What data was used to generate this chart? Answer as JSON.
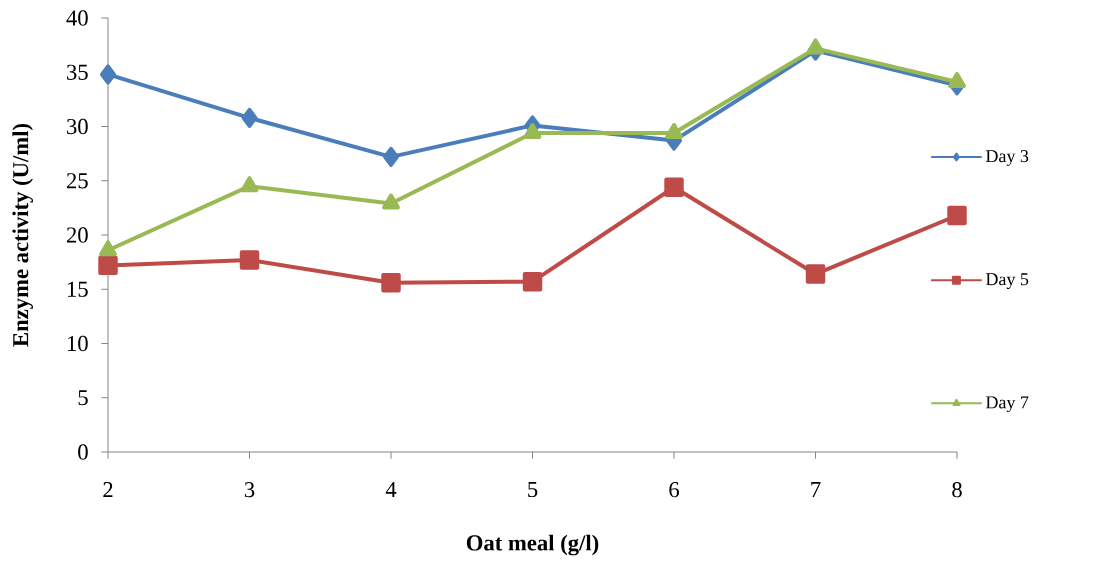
{
  "chart_data": {
    "type": "line",
    "xlabel": "Oat meal (g/l)",
    "ylabel": "Enzyme activity (U/ml)",
    "x": [
      2,
      3,
      4,
      5,
      6,
      7,
      8
    ],
    "series": [
      {
        "name": "Day 3",
        "color": "#4a7ebb",
        "marker": "diamond",
        "values": [
          34.8,
          30.8,
          27.2,
          30.1,
          28.7,
          37.0,
          33.8
        ]
      },
      {
        "name": "Day 5",
        "color": "#be4b48",
        "marker": "square",
        "values": [
          17.2,
          17.7,
          15.6,
          15.7,
          24.4,
          16.4,
          21.8
        ]
      },
      {
        "name": "Day 7",
        "color": "#98b954",
        "marker": "triangle",
        "values": [
          18.6,
          24.5,
          22.9,
          29.4,
          29.4,
          37.2,
          34.1
        ]
      }
    ],
    "xlim": [
      2,
      8
    ],
    "ylim": [
      0,
      40
    ],
    "xticks": [
      2,
      3,
      4,
      5,
      6,
      7,
      8
    ],
    "yticks": [
      0,
      5,
      10,
      15,
      20,
      25,
      30,
      35,
      40
    ],
    "legend": "right",
    "line_style": "solid"
  }
}
